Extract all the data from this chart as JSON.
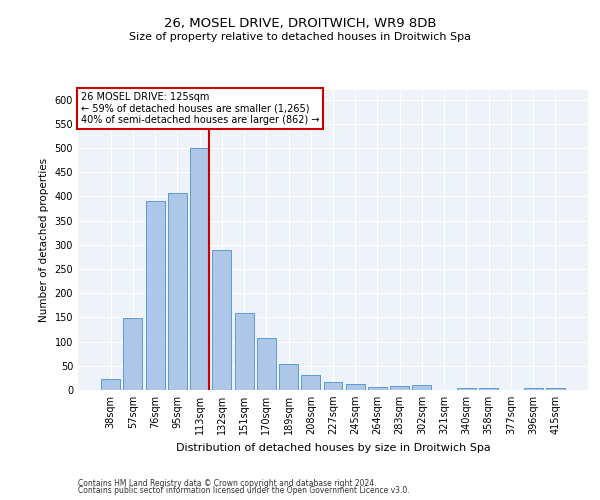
{
  "title1": "26, MOSEL DRIVE, DROITWICH, WR9 8DB",
  "title2": "Size of property relative to detached houses in Droitwich Spa",
  "xlabel": "Distribution of detached houses by size in Droitwich Spa",
  "ylabel": "Number of detached properties",
  "categories": [
    "38sqm",
    "57sqm",
    "76sqm",
    "95sqm",
    "113sqm",
    "132sqm",
    "151sqm",
    "170sqm",
    "189sqm",
    "208sqm",
    "227sqm",
    "245sqm",
    "264sqm",
    "283sqm",
    "302sqm",
    "321sqm",
    "340sqm",
    "358sqm",
    "377sqm",
    "396sqm",
    "415sqm"
  ],
  "values": [
    23,
    148,
    390,
    408,
    500,
    289,
    159,
    108,
    53,
    30,
    16,
    12,
    6,
    8,
    10,
    0,
    4,
    4,
    0,
    5,
    4
  ],
  "bar_color": "#aec6e8",
  "bar_edge_color": "#5b9bd5",
  "annotation_line1": "26 MOSEL DRIVE: 125sqm",
  "annotation_line2": "← 59% of detached houses are smaller (1,265)",
  "annotation_line3": "40% of semi-detached houses are larger (862) →",
  "vline_color": "#cc0000",
  "annotation_box_edge": "#cc0000",
  "ylim": [
    0,
    620
  ],
  "yticks": [
    0,
    50,
    100,
    150,
    200,
    250,
    300,
    350,
    400,
    450,
    500,
    550,
    600
  ],
  "bg_color": "#eef2f9",
  "footer1": "Contains HM Land Registry data © Crown copyright and database right 2024.",
  "footer2": "Contains public sector information licensed under the Open Government Licence v3.0."
}
